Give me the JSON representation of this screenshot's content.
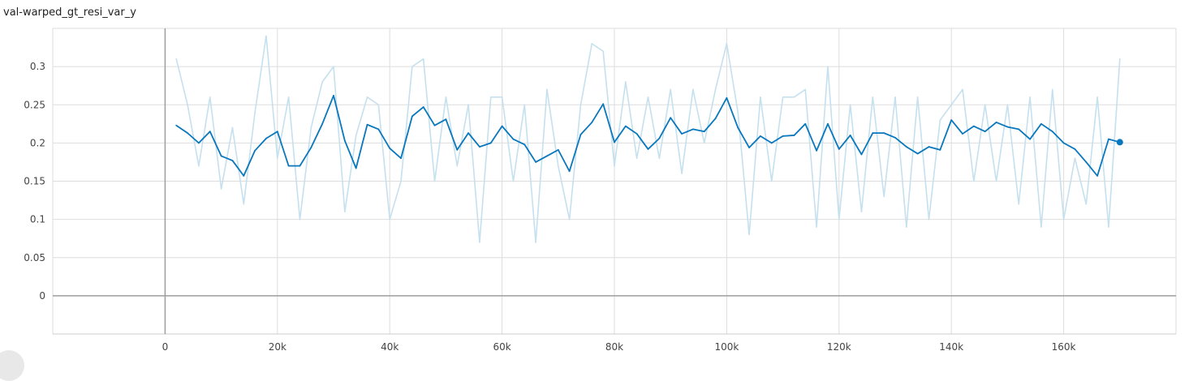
{
  "chart_data": {
    "type": "line",
    "title": "val-warped_gt_resi_var_y",
    "xlabel": "",
    "ylabel": "",
    "xlim": [
      -20000,
      180000
    ],
    "ylim": [
      -0.05,
      0.35
    ],
    "x_ticks": [
      0,
      20000,
      40000,
      60000,
      80000,
      100000,
      120000,
      140000,
      160000
    ],
    "x_tick_labels": [
      "0",
      "20k",
      "40k",
      "60k",
      "80k",
      "100k",
      "120k",
      "140k",
      "160k"
    ],
    "y_ticks": [
      0,
      0.05,
      0.1,
      0.15,
      0.2,
      0.25,
      0.3
    ],
    "y_tick_labels": [
      "0",
      "0.05",
      "0.1",
      "0.15",
      "0.2",
      "0.25",
      "0.3"
    ],
    "grid": true,
    "colors": {
      "smoothed": "#0877bd",
      "raw": "#c5e0ee",
      "grid": "#dddddd",
      "axis": "#9e9e9e"
    },
    "series": [
      {
        "role": "raw",
        "x": [
          2000,
          4000,
          6000,
          8000,
          10000,
          12000,
          14000,
          16000,
          18000,
          20000,
          22000,
          24000,
          26000,
          28000,
          30000,
          32000,
          34000,
          36000,
          38000,
          40000,
          42000,
          44000,
          46000,
          48000,
          50000,
          52000,
          54000,
          56000,
          58000,
          60000,
          62000,
          64000,
          66000,
          68000,
          70000,
          72000,
          74000,
          76000,
          78000,
          80000,
          82000,
          84000,
          86000,
          88000,
          90000,
          92000,
          94000,
          96000,
          98000,
          100000,
          102000,
          104000,
          106000,
          108000,
          110000,
          112000,
          114000,
          116000,
          118000,
          120000,
          122000,
          124000,
          126000,
          128000,
          130000,
          132000,
          134000,
          136000,
          138000,
          140000,
          142000,
          144000,
          146000,
          148000,
          150000,
          152000,
          154000,
          156000,
          158000,
          160000,
          162000,
          164000,
          166000,
          168000,
          170000
        ],
        "values": [
          0.31,
          0.25,
          0.17,
          0.26,
          0.14,
          0.22,
          0.12,
          0.24,
          0.34,
          0.18,
          0.26,
          0.1,
          0.22,
          0.28,
          0.3,
          0.11,
          0.21,
          0.26,
          0.25,
          0.1,
          0.15,
          0.3,
          0.31,
          0.15,
          0.26,
          0.17,
          0.25,
          0.07,
          0.26,
          0.26,
          0.15,
          0.25,
          0.07,
          0.27,
          0.17,
          0.1,
          0.25,
          0.33,
          0.32,
          0.17,
          0.28,
          0.18,
          0.26,
          0.18,
          0.27,
          0.16,
          0.27,
          0.2,
          0.27,
          0.33,
          0.24,
          0.08,
          0.26,
          0.15,
          0.26,
          0.26,
          0.27,
          0.09,
          0.3,
          0.1,
          0.25,
          0.11,
          0.26,
          0.13,
          0.26,
          0.09,
          0.26,
          0.1,
          0.23,
          0.25,
          0.27,
          0.15,
          0.25,
          0.15,
          0.25,
          0.12,
          0.26,
          0.09,
          0.27,
          0.1,
          0.18,
          0.12,
          0.26,
          0.09,
          0.31
        ]
      },
      {
        "role": "smoothed",
        "x": [
          2000,
          4000,
          6000,
          8000,
          10000,
          12000,
          14000,
          16000,
          18000,
          20000,
          22000,
          24000,
          26000,
          28000,
          30000,
          32000,
          34000,
          36000,
          38000,
          40000,
          42000,
          44000,
          46000,
          48000,
          50000,
          52000,
          54000,
          56000,
          58000,
          60000,
          62000,
          64000,
          66000,
          68000,
          70000,
          72000,
          74000,
          76000,
          78000,
          80000,
          82000,
          84000,
          86000,
          88000,
          90000,
          92000,
          94000,
          96000,
          98000,
          100000,
          102000,
          104000,
          106000,
          108000,
          110000,
          112000,
          114000,
          116000,
          118000,
          120000,
          122000,
          124000,
          126000,
          128000,
          130000,
          132000,
          134000,
          136000,
          138000,
          140000,
          142000,
          144000,
          146000,
          148000,
          150000,
          152000,
          154000,
          156000,
          158000,
          160000,
          162000,
          164000,
          166000,
          168000,
          170000
        ],
        "values": [
          0.223,
          0.213,
          0.2,
          0.215,
          0.183,
          0.177,
          0.157,
          0.19,
          0.206,
          0.215,
          0.17,
          0.17,
          0.194,
          0.225,
          0.262,
          0.203,
          0.167,
          0.224,
          0.218,
          0.193,
          0.18,
          0.235,
          0.247,
          0.223,
          0.231,
          0.191,
          0.213,
          0.195,
          0.2,
          0.222,
          0.205,
          0.198,
          0.175,
          0.183,
          0.191,
          0.163,
          0.211,
          0.227,
          0.251,
          0.201,
          0.222,
          0.212,
          0.192,
          0.206,
          0.233,
          0.212,
          0.218,
          0.215,
          0.232,
          0.259,
          0.22,
          0.194,
          0.209,
          0.2,
          0.209,
          0.21,
          0.225,
          0.19,
          0.225,
          0.192,
          0.21,
          0.185,
          0.213,
          0.213,
          0.207,
          0.195,
          0.186,
          0.195,
          0.191,
          0.23,
          0.212,
          0.222,
          0.215,
          0.227,
          0.221,
          0.218,
          0.205,
          0.225,
          0.215,
          0.2,
          0.192,
          0.175,
          0.157,
          0.205,
          0.201
        ]
      }
    ],
    "last_point": {
      "x": 170000,
      "y": 0.201
    }
  }
}
